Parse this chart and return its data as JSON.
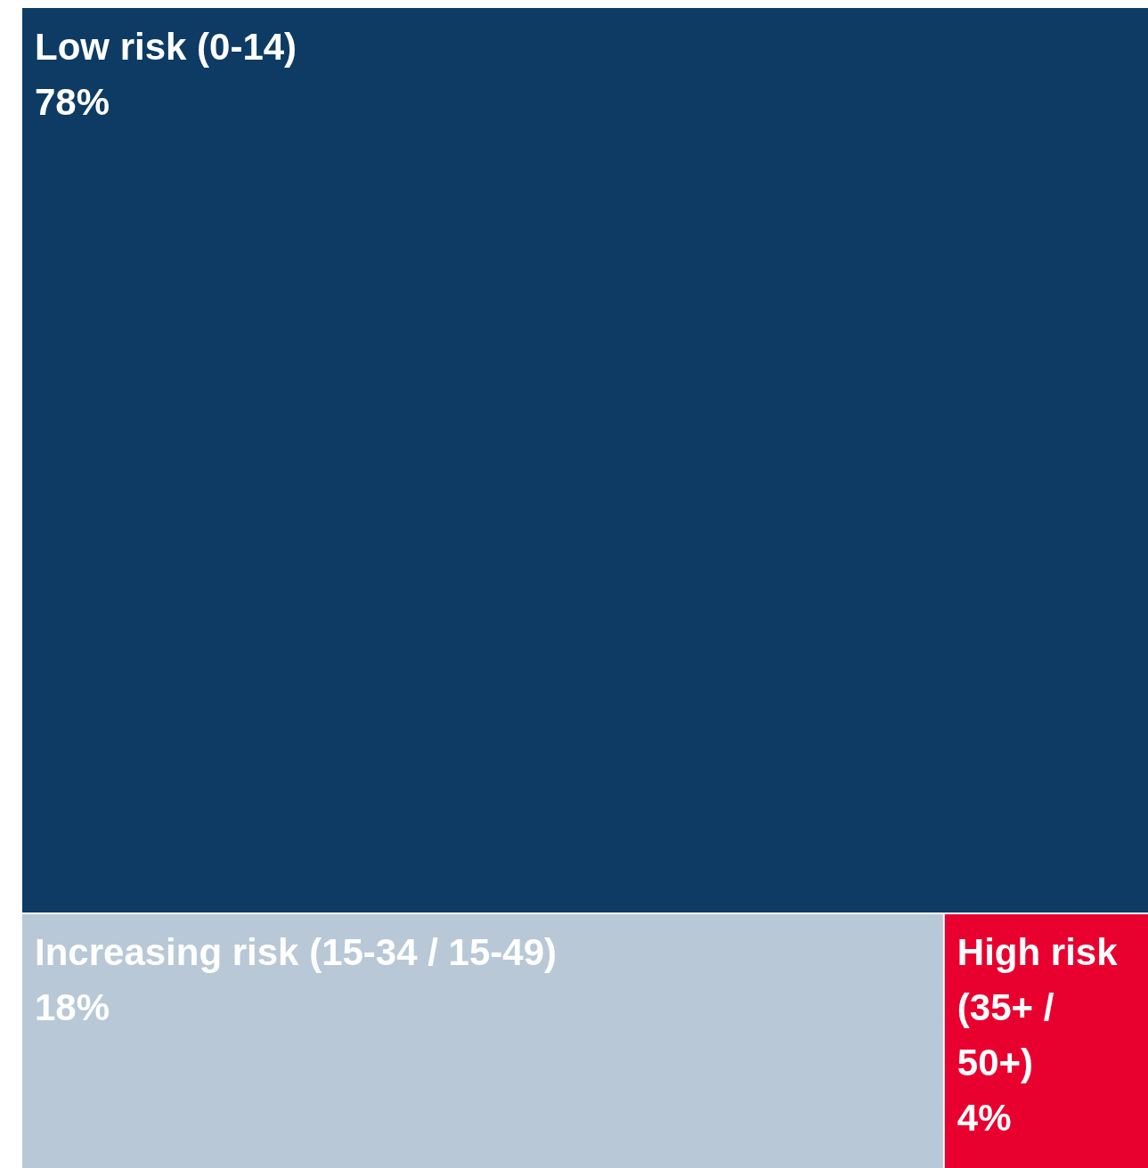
{
  "chart_data": {
    "type": "other",
    "categories": [
      "Low risk (0-14)",
      "Increasing risk (15-34 / 15-49)",
      "High risk (35+ / 50+)"
    ],
    "values": [
      78,
      18,
      4
    ],
    "value_labels": [
      "78%",
      "18%",
      "4%"
    ],
    "colors": [
      "#0d3b63",
      "#b8c8d7",
      "#e8002f"
    ]
  }
}
